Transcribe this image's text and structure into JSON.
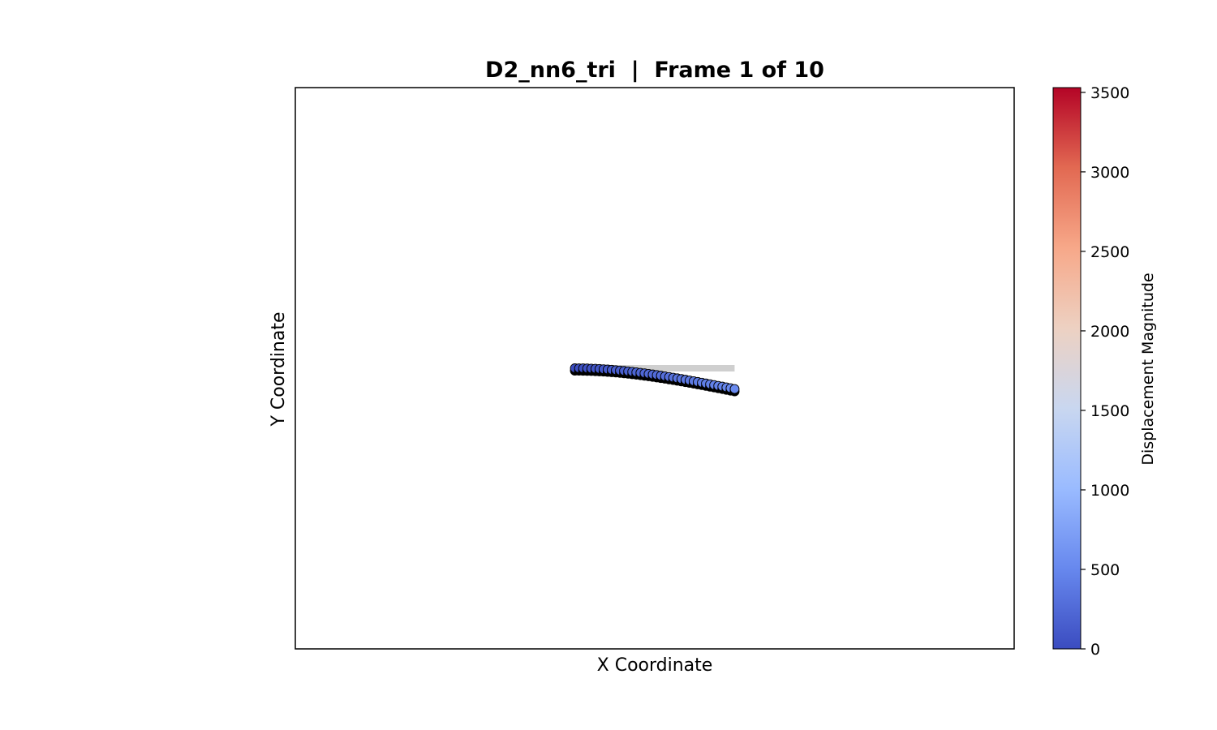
{
  "chart_data": {
    "type": "scatter",
    "title": "D2_nn6_tri  |  Frame 1 of 10",
    "xlabel": "X Coordinate",
    "ylabel": "Y Coordinate",
    "grid": false,
    "x_ticks_visible": false,
    "y_ticks_visible": false,
    "xlim": [
      -2.25,
      2.25
    ],
    "ylim": [
      -1.76,
      1.76
    ],
    "reference_series": {
      "name": "undeformed",
      "color": "#cfcfcf",
      "x": [
        -0.5,
        0.5
      ],
      "y": [
        0.0,
        0.0
      ]
    },
    "deformed_series": {
      "name": "deformed",
      "point_count": 40,
      "x_range": [
        -0.5,
        0.5
      ],
      "y_end": -0.13,
      "displacement_range": [
        0,
        520
      ],
      "edge_color": "#000000"
    },
    "colorbar": {
      "label": "Displacement Magnitude",
      "colormap": "coolwarm",
      "colors": [
        "#3b4cc0",
        "#6788ee",
        "#9abbff",
        "#c9d7f0",
        "#edd1c2",
        "#f7a889",
        "#e26952",
        "#b40426"
      ],
      "range": [
        0,
        3530
      ],
      "ticks": [
        0,
        500,
        1000,
        1500,
        2000,
        2500,
        3000,
        3500
      ],
      "tick_labels": [
        "0",
        "500",
        "1000",
        "1500",
        "2000",
        "2500",
        "3000",
        "3500"
      ]
    }
  }
}
